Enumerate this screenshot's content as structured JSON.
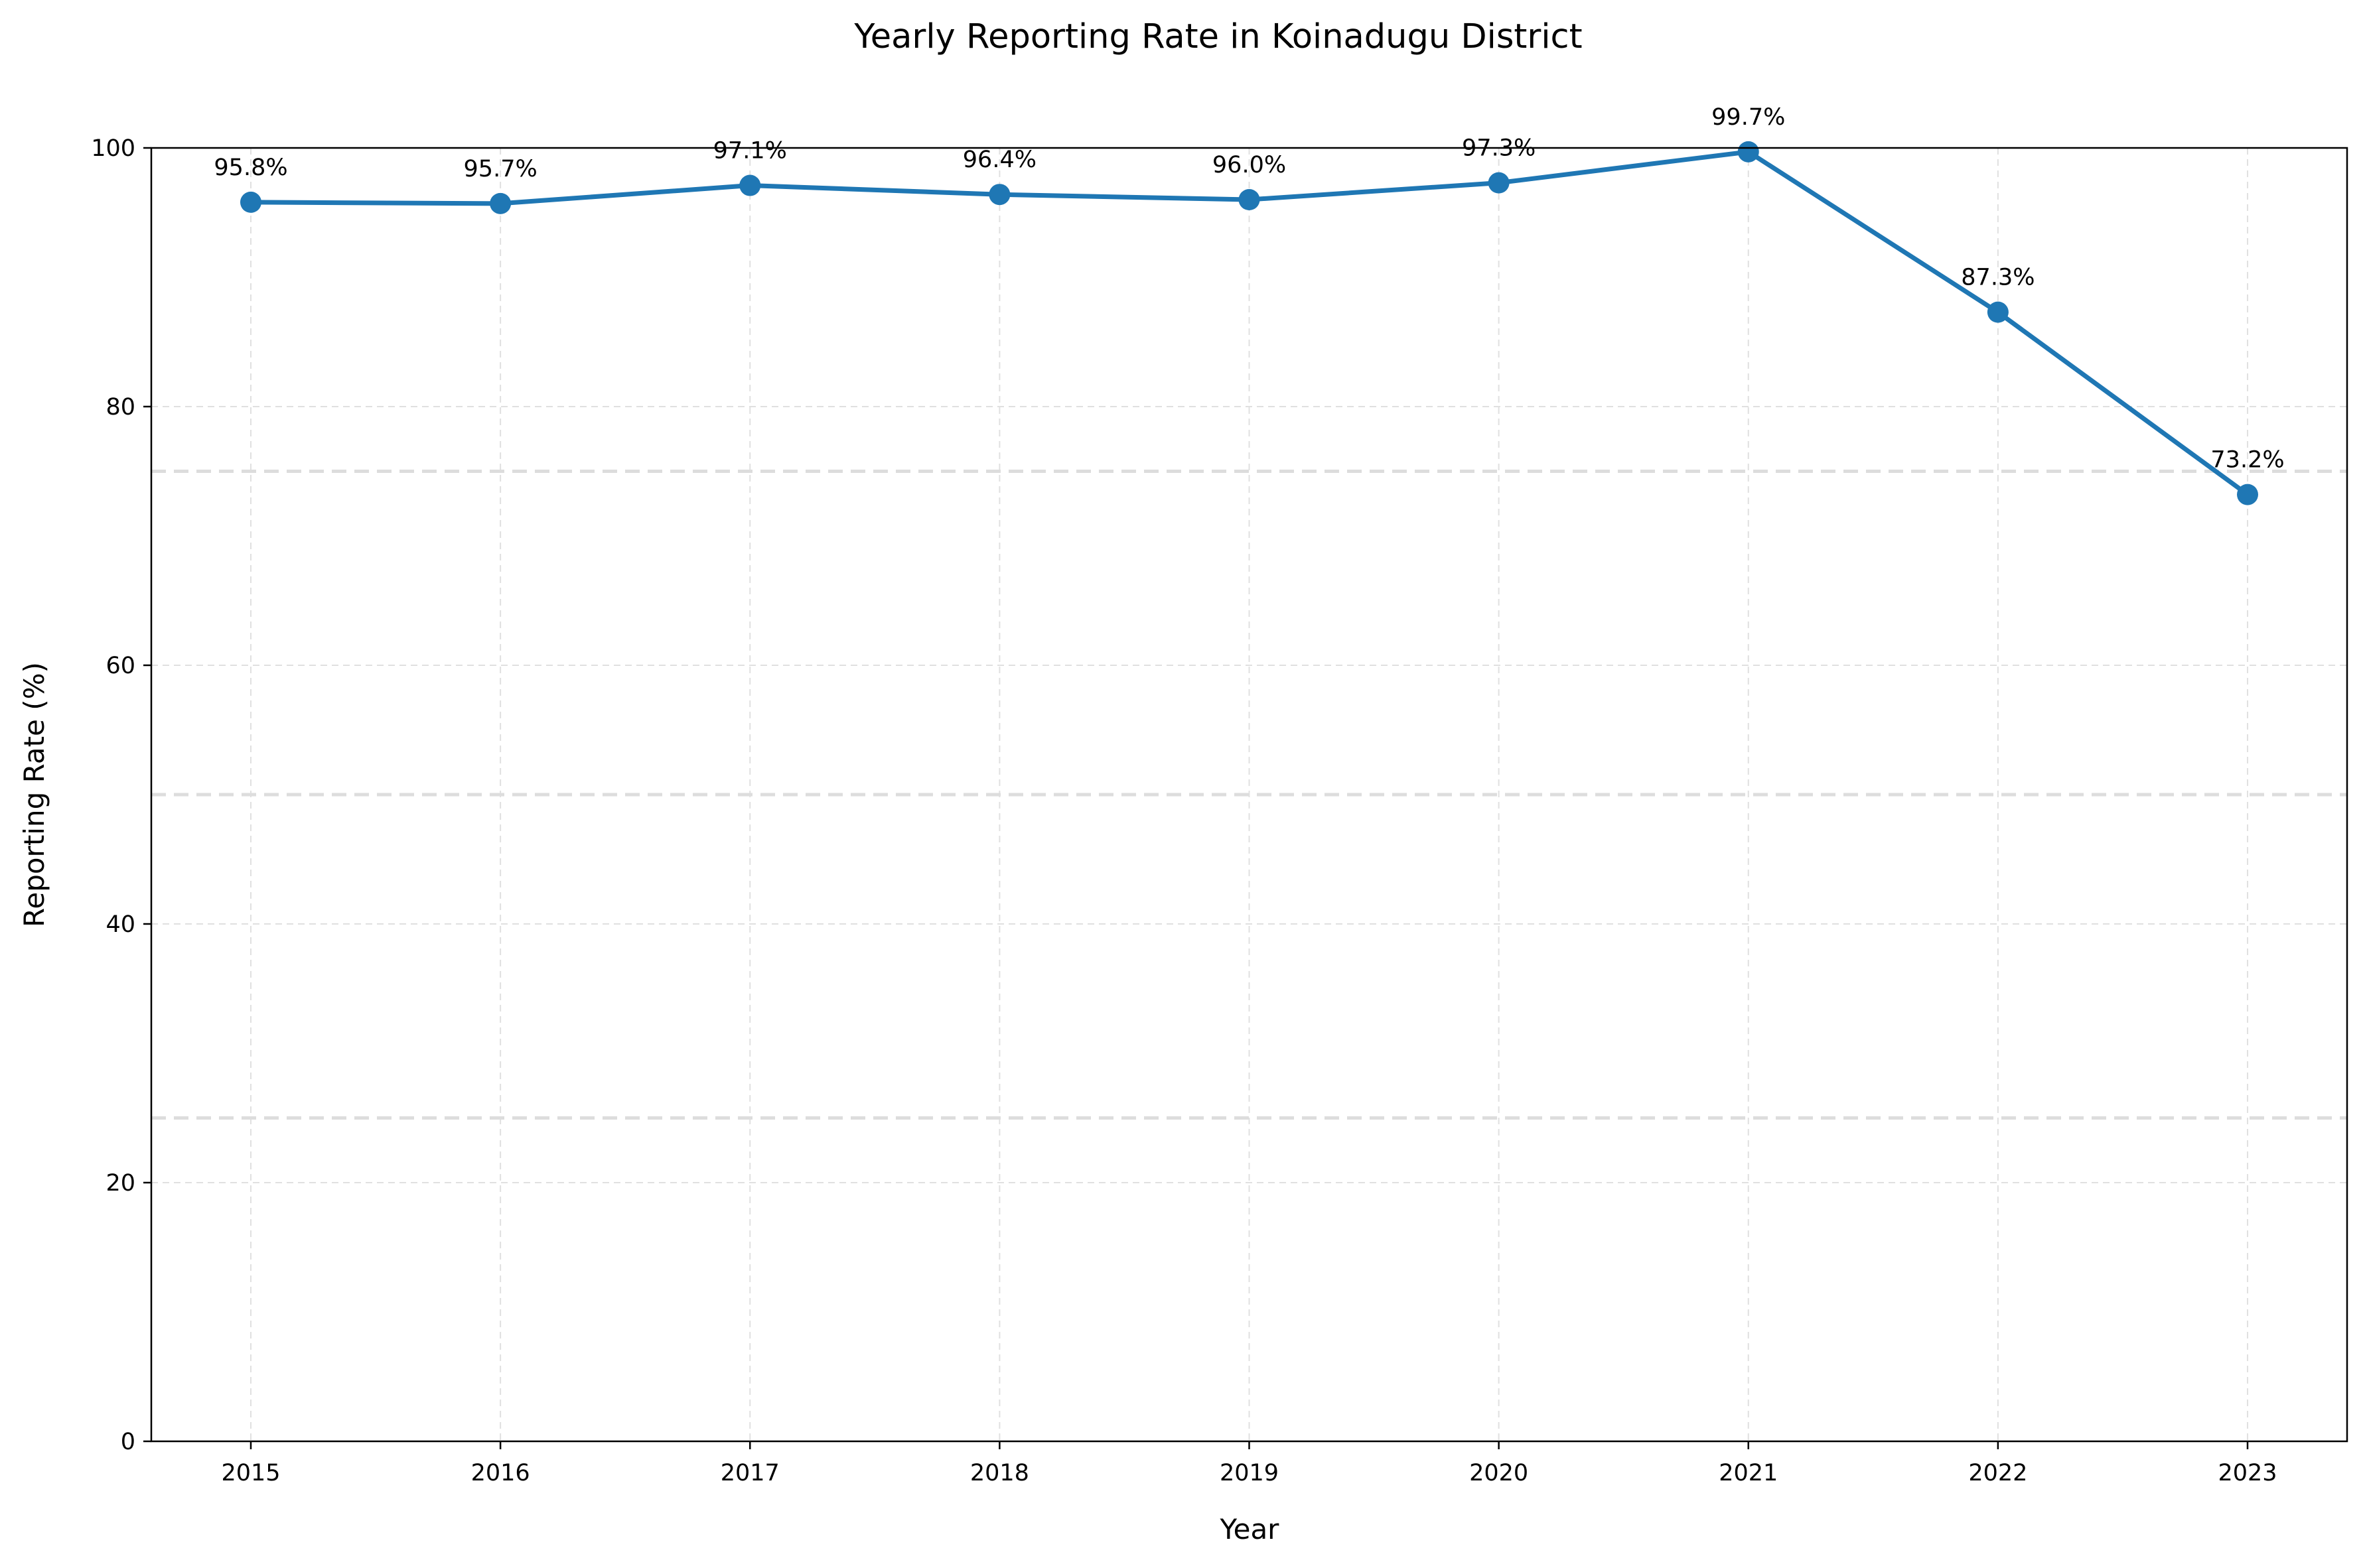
{
  "chart_data": {
    "type": "line",
    "title": "Yearly Reporting Rate in Koinadugu District",
    "xlabel": "Year",
    "ylabel": "Reporting Rate (%)",
    "categories": [
      "2015",
      "2016",
      "2017",
      "2018",
      "2019",
      "2020",
      "2021",
      "2022",
      "2023"
    ],
    "series": [
      {
        "values": [
          95.8,
          95.7,
          97.1,
          96.4,
          96.0,
          97.3,
          99.7,
          87.3,
          73.2
        ],
        "color": "#1f77b4",
        "marker": "circle"
      }
    ],
    "data_labels": [
      "95.8%",
      "95.7%",
      "97.1%",
      "96.4%",
      "96.0%",
      "97.3%",
      "99.7%",
      "87.3%",
      "73.2%"
    ],
    "ylim": [
      0,
      100
    ],
    "yticks": [
      0,
      20,
      40,
      60,
      80,
      100
    ],
    "grid": true,
    "reference_lines": [
      25,
      50,
      75
    ],
    "colors": {
      "line": "#1f77b4",
      "grid": "#e0e0e0",
      "reference": "#dddddd",
      "axes": "#000000"
    }
  }
}
